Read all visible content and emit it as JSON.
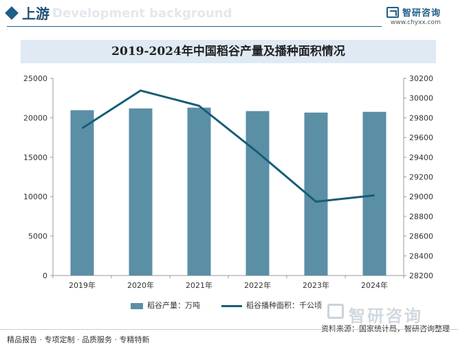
{
  "header": {
    "section_title": "上游",
    "section_bg_text": "Development background",
    "logo_name": "智研咨询",
    "logo_url": "www.chyxx.com"
  },
  "chart_data": {
    "type": "bar+line",
    "title": "2019-2024年中国稻谷产量及播种面积情况",
    "categories": [
      "2019年",
      "2020年",
      "2021年",
      "2022年",
      "2023年",
      "2024年"
    ],
    "series": [
      {
        "name": "稻谷产量：万吨",
        "type": "bar",
        "axis": "left",
        "values": [
          20961,
          21186,
          21284,
          20849,
          20660,
          20754
        ]
      },
      {
        "name": "稻谷播种面积：千公顷",
        "type": "line",
        "axis": "right",
        "values": [
          29694,
          30076,
          29921,
          29450,
          28949,
          29013
        ]
      }
    ],
    "y_left": {
      "min": 0,
      "max": 25000,
      "ticks": [
        "0",
        "5000",
        "10000",
        "15000",
        "20000",
        "25000"
      ]
    },
    "y_right": {
      "min": 28200,
      "max": 30200,
      "ticks": [
        "28200",
        "28400",
        "28600",
        "28800",
        "29000",
        "29200",
        "29400",
        "29600",
        "29800",
        "30000",
        "30200"
      ]
    },
    "legend_position": "bottom",
    "colors": {
      "bar": "#5b8fa6",
      "line": "#155d76"
    }
  },
  "source": "资料来源：国家统计局，智研咨询整理",
  "footer": "精品报告 · 专项定制 · 品质服务 · 专精特新",
  "watermark": "智研咨询"
}
